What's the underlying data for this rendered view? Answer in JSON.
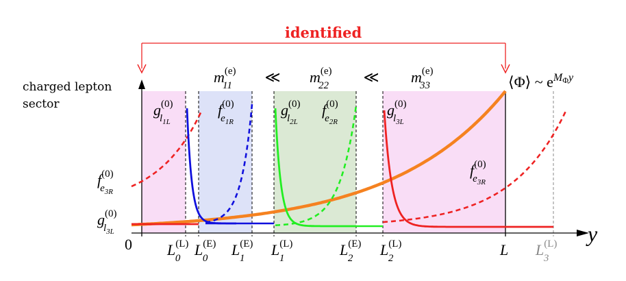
{
  "identified": "identified",
  "sector_line1": "charged lepton",
  "sector_line2": "sector",
  "mass_labels": [
    {
      "base": "m",
      "sub": "11",
      "sup": "(e)"
    },
    {
      "base": "m",
      "sub": "22",
      "sup": "(e)"
    },
    {
      "base": "m",
      "sub": "33",
      "sup": "(e)"
    }
  ],
  "ll_symbol": "≪",
  "vev": {
    "lhs": "⟨Φ⟩ ~ e",
    "exp": "M",
    "exp_sub": "Φ",
    "exp_tail": "y"
  },
  "axis": {
    "y": "y",
    "origin": "0",
    "L": "L"
  },
  "ticks": [
    {
      "base": "L",
      "sub": "0",
      "sup": "(L)"
    },
    {
      "base": "L",
      "sub": "0",
      "sup": "(E)"
    },
    {
      "base": "L",
      "sub": "1",
      "sup": "(E)"
    },
    {
      "base": "L",
      "sub": "1",
      "sup": "(L)"
    },
    {
      "base": "L",
      "sub": "2",
      "sup": "(E)"
    },
    {
      "base": "L",
      "sub": "2",
      "sup": "(L)"
    },
    {
      "base": "L",
      "sub": "3",
      "sup": "(L)"
    }
  ],
  "curve_labels": [
    {
      "base": "g",
      "sub": "l",
      "subsub": "1L",
      "sup": "(0)"
    },
    {
      "base": "f",
      "sub": "e",
      "subsub": "1R",
      "sup": "(0)"
    },
    {
      "base": "g",
      "sub": "l",
      "subsub": "2L",
      "sup": "(0)"
    },
    {
      "base": "f",
      "sub": "e",
      "subsub": "2R",
      "sup": "(0)"
    },
    {
      "base": "g",
      "sub": "l",
      "subsub": "3L",
      "sup": "(0)"
    },
    {
      "base": "f",
      "sub": "e",
      "subsub": "3R",
      "sup": "(0)"
    },
    {
      "base": "f",
      "sub": "e",
      "subsub": "3R",
      "sup": "(0)"
    },
    {
      "base": "g",
      "sub": "l",
      "subsub": "3L",
      "sup": "(0)"
    }
  ],
  "colors": {
    "pink": "#f9ddf6",
    "blue": "#dde2f8",
    "green": "#dbe9d4",
    "red": "#ee2222",
    "blue_curve": "#1010dd",
    "green_curve": "#22ee22",
    "orange": "#f58220",
    "gray": "#888888"
  }
}
